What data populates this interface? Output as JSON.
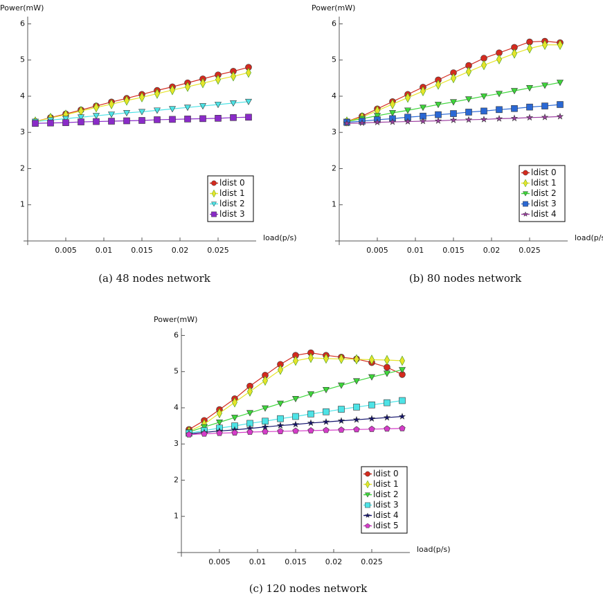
{
  "chart_data": [
    {
      "type": "line",
      "caption": "(a) 48 nodes network",
      "ylabel": "Power(mW)",
      "xlabel": "load(p/s)",
      "x": [
        0.001,
        0.003,
        0.005,
        0.007,
        0.009,
        0.011,
        0.013,
        0.015,
        0.017,
        0.019,
        0.021,
        0.023,
        0.025,
        0.027,
        0.029
      ],
      "xlim": [
        0,
        0.03
      ],
      "xticks": [
        0.005,
        0.01,
        0.015,
        0.02,
        0.025
      ],
      "ylim": [
        0,
        6.2
      ],
      "yticks": [
        1,
        2,
        3,
        4,
        5,
        6
      ],
      "legend": "lower right",
      "series": [
        {
          "name": "ldist 0",
          "color": "#d42a1e",
          "marker": "circle",
          "values": [
            3.3,
            3.41,
            3.51,
            3.62,
            3.73,
            3.84,
            3.94,
            4.05,
            4.16,
            4.26,
            4.37,
            4.48,
            4.59,
            4.69,
            4.8
          ]
        },
        {
          "name": "ldist 1",
          "color": "#e6e42a",
          "marker": "diamond",
          "values": [
            3.3,
            3.4,
            3.49,
            3.59,
            3.69,
            3.78,
            3.88,
            3.97,
            4.07,
            4.17,
            4.26,
            4.36,
            4.46,
            4.55,
            4.65
          ]
        },
        {
          "name": "ldist 2",
          "color": "#4de3e6",
          "marker": "triangle-down",
          "values": [
            3.3,
            3.34,
            3.38,
            3.42,
            3.46,
            3.5,
            3.54,
            3.57,
            3.61,
            3.65,
            3.69,
            3.73,
            3.77,
            3.81,
            3.85
          ]
        },
        {
          "name": "ldist 3",
          "color": "#8a2bc8",
          "marker": "square",
          "values": [
            3.25,
            3.26,
            3.27,
            3.29,
            3.3,
            3.31,
            3.32,
            3.33,
            3.35,
            3.36,
            3.37,
            3.38,
            3.39,
            3.41,
            3.42
          ]
        }
      ]
    },
    {
      "type": "line",
      "caption": "(b) 80 nodes network",
      "ylabel": "Power(mW)",
      "xlabel": "load(p/s)",
      "x": [
        0.001,
        0.003,
        0.005,
        0.007,
        0.009,
        0.011,
        0.013,
        0.015,
        0.017,
        0.019,
        0.021,
        0.023,
        0.025,
        0.027,
        0.029
      ],
      "xlim": [
        0,
        0.03
      ],
      "xticks": [
        0.005,
        0.01,
        0.015,
        0.02,
        0.025
      ],
      "ylim": [
        0,
        6.2
      ],
      "yticks": [
        1,
        2,
        3,
        4,
        5,
        6
      ],
      "legend": "lower right",
      "series": [
        {
          "name": "ldist 0",
          "color": "#d42a1e",
          "marker": "circle",
          "values": [
            3.3,
            3.45,
            3.65,
            3.85,
            4.05,
            4.25,
            4.45,
            4.65,
            4.85,
            5.05,
            5.2,
            5.35,
            5.5,
            5.52,
            5.48
          ]
        },
        {
          "name": "ldist 1",
          "color": "#e6e42a",
          "marker": "diamond",
          "values": [
            3.3,
            3.42,
            3.6,
            3.78,
            3.96,
            4.14,
            4.32,
            4.5,
            4.68,
            4.86,
            5.02,
            5.18,
            5.32,
            5.42,
            5.42
          ]
        },
        {
          "name": "ldist 2",
          "color": "#3dd63a",
          "marker": "triangle-down",
          "values": [
            3.3,
            3.38,
            3.46,
            3.54,
            3.61,
            3.69,
            3.77,
            3.84,
            3.92,
            4.0,
            4.07,
            4.15,
            4.23,
            4.3,
            4.38
          ]
        },
        {
          "name": "ldist 3",
          "color": "#2a68d4",
          "marker": "square",
          "values": [
            3.28,
            3.31,
            3.35,
            3.38,
            3.42,
            3.45,
            3.49,
            3.52,
            3.56,
            3.59,
            3.63,
            3.66,
            3.7,
            3.73,
            3.77
          ]
        },
        {
          "name": "ldist 4",
          "color": "#9c3fa0",
          "marker": "star",
          "values": [
            3.25,
            3.26,
            3.28,
            3.29,
            3.3,
            3.31,
            3.32,
            3.34,
            3.35,
            3.36,
            3.38,
            3.39,
            3.41,
            3.42,
            3.44
          ]
        }
      ]
    },
    {
      "type": "line",
      "caption": "(c) 120 nodes network",
      "ylabel": "Power(mW)",
      "xlabel": "load(p/s)",
      "x": [
        0.001,
        0.003,
        0.005,
        0.007,
        0.009,
        0.011,
        0.013,
        0.015,
        0.017,
        0.019,
        0.021,
        0.023,
        0.025,
        0.027,
        0.029
      ],
      "xlim": [
        0,
        0.03
      ],
      "xticks": [
        0.005,
        0.01,
        0.015,
        0.02,
        0.025
      ],
      "ylim": [
        0,
        6.2
      ],
      "yticks": [
        1,
        2,
        3,
        4,
        5,
        6
      ],
      "legend": "lower right",
      "series": [
        {
          "name": "ldist 0",
          "color": "#d42a1e",
          "marker": "circle",
          "values": [
            3.4,
            3.65,
            3.95,
            4.25,
            4.6,
            4.9,
            5.2,
            5.45,
            5.52,
            5.45,
            5.4,
            5.35,
            5.25,
            5.12,
            4.92
          ]
        },
        {
          "name": "ldist 1",
          "color": "#e6e42a",
          "marker": "diamond",
          "values": [
            3.35,
            3.55,
            3.85,
            4.15,
            4.45,
            4.75,
            5.05,
            5.3,
            5.38,
            5.36,
            5.35,
            5.34,
            5.33,
            5.32,
            5.3
          ]
        },
        {
          "name": "ldist 2",
          "color": "#3dd63a",
          "marker": "triangle-down",
          "values": [
            3.33,
            3.47,
            3.6,
            3.73,
            3.86,
            3.99,
            4.12,
            4.25,
            4.38,
            4.5,
            4.62,
            4.74,
            4.85,
            4.95,
            5.05
          ]
        },
        {
          "name": "ldist 3",
          "color": "#4de3e6",
          "marker": "square",
          "values": [
            3.3,
            3.37,
            3.44,
            3.5,
            3.57,
            3.63,
            3.7,
            3.76,
            3.83,
            3.89,
            3.96,
            4.02,
            4.08,
            4.14,
            4.2
          ]
        },
        {
          "name": "ldist 4",
          "color": "#14146e",
          "marker": "star",
          "values": [
            3.28,
            3.32,
            3.36,
            3.39,
            3.43,
            3.47,
            3.51,
            3.54,
            3.58,
            3.61,
            3.64,
            3.67,
            3.7,
            3.73,
            3.76
          ]
        },
        {
          "name": "ldist 5",
          "color": "#d43cc8",
          "marker": "pentagon",
          "values": [
            3.26,
            3.28,
            3.3,
            3.31,
            3.33,
            3.34,
            3.35,
            3.36,
            3.37,
            3.38,
            3.39,
            3.4,
            3.41,
            3.42,
            3.43
          ]
        }
      ]
    }
  ]
}
